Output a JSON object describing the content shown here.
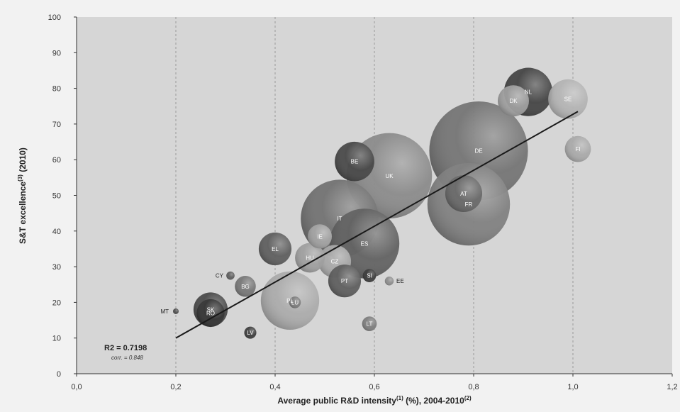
{
  "chart_data": {
    "type": "scatter",
    "title": "",
    "xlabel": "Average public R&D intensity",
    "xlabel_sup1": "(1)",
    "xlabel_mid": " (%), 2004-2010",
    "xlabel_sup2": "(2)",
    "ylabel": "S&T excellence",
    "ylabel_sup": "(3)",
    "ylabel_tail": " (2010)",
    "xlim": [
      0,
      1.2
    ],
    "ylim": [
      0,
      100
    ],
    "xticks": [
      "0,0",
      "0,2",
      "0,4",
      "0,6",
      "0,8",
      "1,0",
      "1,2"
    ],
    "yticks": [
      "0",
      "10",
      "20",
      "30",
      "40",
      "50",
      "60",
      "70",
      "80",
      "90",
      "100"
    ],
    "grid": "vertical dashed",
    "points": [
      {
        "label": "DE",
        "x": 0.81,
        "y": 62.5,
        "size": 10,
        "color": "#6e6e6e"
      },
      {
        "label": "FR",
        "x": 0.79,
        "y": 47.5,
        "size": 7,
        "color": "#7a7a7a"
      },
      {
        "label": "UK",
        "x": 0.63,
        "y": 55.5,
        "size": 7.5,
        "color": "#858585"
      },
      {
        "label": "IT",
        "x": 0.53,
        "y": 43.5,
        "size": 6.2,
        "color": "#6a6a6a"
      },
      {
        "label": "ES",
        "x": 0.58,
        "y": 36.5,
        "size": 5,
        "color": "#5a5a5a"
      },
      {
        "label": "AT",
        "x": 0.78,
        "y": 50.5,
        "size": 1.4,
        "color": "#626262"
      },
      {
        "label": "BE",
        "x": 0.56,
        "y": 59.5,
        "size": 1.6,
        "color": "#3e3e3e"
      },
      {
        "label": "PL",
        "x": 0.43,
        "y": 20.5,
        "size": 3.5,
        "color": "#a8a8a8"
      },
      {
        "label": "NL",
        "x": 0.91,
        "y": 79,
        "size": 2.4,
        "color": "#3a3a3a"
      },
      {
        "label": "DK",
        "x": 0.88,
        "y": 76.5,
        "size": 1,
        "color": "#9a9a9a"
      },
      {
        "label": "SE",
        "x": 0.99,
        "y": 77,
        "size": 1.6,
        "color": "#b0b0b0"
      },
      {
        "label": "FI",
        "x": 1.01,
        "y": 63,
        "size": 0.7,
        "color": "#a5a5a5"
      },
      {
        "label": "EL",
        "x": 0.4,
        "y": 35,
        "size": 1.1,
        "color": "#555555"
      },
      {
        "label": "IE",
        "x": 0.49,
        "y": 38.5,
        "size": 0.6,
        "color": "#a0a0a0"
      },
      {
        "label": "HU",
        "x": 0.47,
        "y": 32.5,
        "size": 0.9,
        "color": "#9a9a9a"
      },
      {
        "label": "CZ",
        "x": 0.52,
        "y": 31.5,
        "size": 1.1,
        "color": "#a3a3a3"
      },
      {
        "label": "PT",
        "x": 0.54,
        "y": 26,
        "size": 1.1,
        "color": "#555555"
      },
      {
        "label": "SI",
        "x": 0.59,
        "y": 27.5,
        "size": 0.18,
        "color": "#333333"
      },
      {
        "label": "EE",
        "x": 0.63,
        "y": 26,
        "size": 0.08,
        "color": "#888888"
      },
      {
        "label": "LT",
        "x": 0.59,
        "y": 14,
        "size": 0.22,
        "color": "#777777"
      },
      {
        "label": "LU",
        "x": 0.44,
        "y": 20,
        "size": 0.14,
        "color": "#777777"
      },
      {
        "label": "SK",
        "x": 0.27,
        "y": 18,
        "size": 1.2,
        "color": "#3f3f3f"
      },
      {
        "label": "RO",
        "x": 0.27,
        "y": 17,
        "size": 0.8,
        "color": "#2c2c2c"
      },
      {
        "label": "BG",
        "x": 0.34,
        "y": 24.5,
        "size": 0.45,
        "color": "#707070"
      },
      {
        "label": "CY",
        "x": 0.31,
        "y": 27.5,
        "size": 0.07,
        "color": "#555555"
      },
      {
        "label": "MT",
        "x": 0.2,
        "y": 17.5,
        "size": 0.03,
        "color": "#444444"
      },
      {
        "label": "LV",
        "x": 0.35,
        "y": 11.5,
        "size": 0.15,
        "color": "#333333"
      }
    ],
    "trendline": {
      "x": [
        0.2,
        1.01
      ],
      "y": [
        10,
        73.5
      ]
    },
    "annotation": {
      "r2": "R2 = 0.7198",
      "corr": "corr. = 0.848"
    }
  }
}
